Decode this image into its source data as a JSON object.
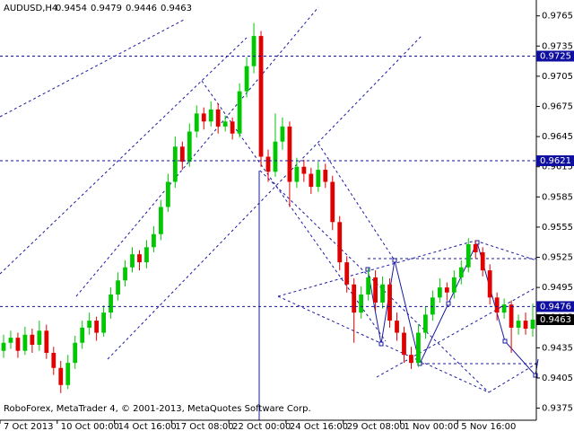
{
  "chart_data": {
    "type": "candlestick",
    "symbol": "AUDUSD,H4",
    "header_values": [
      0.9454,
      0.9479,
      0.9446,
      0.9463
    ],
    "footer": "RoboForex, MetaTrader 4, © 2001-2013, MetaQuotes Software Corp.",
    "up_color": "#00c800",
    "down_color": "#e00000",
    "level_color": "#1010a0",
    "last_color": "#000000",
    "ylim": [
      0.9363,
      0.9779
    ],
    "yticks": [
      0.9765,
      0.9735,
      0.9705,
      0.9675,
      0.9645,
      0.9615,
      0.9585,
      0.9555,
      0.9525,
      0.9495,
      0.9465,
      0.9435,
      0.9405,
      0.9375
    ],
    "xlim": [
      0,
      75
    ],
    "xticks": [
      {
        "value": 0,
        "label": "7 Oct 2013"
      },
      {
        "value": 8,
        "label": "10 Oct 00:00"
      },
      {
        "value": 16,
        "label": "14 Oct 16:00"
      },
      {
        "value": 24,
        "label": "17 Oct 08:00"
      },
      {
        "value": 32,
        "label": "22 Oct 00:00"
      },
      {
        "value": 40,
        "label": "24 Oct 16:00"
      },
      {
        "value": 48,
        "label": "29 Oct 08:00"
      },
      {
        "value": 56,
        "label": "1 Nov 00:00"
      },
      {
        "value": 64,
        "label": "5 Nov 16:00"
      }
    ],
    "levels": [
      0.9725,
      0.9621,
      0.9476
    ],
    "last": 0.9463,
    "ohlc": [
      [
        0.9432,
        0.9448,
        0.9425,
        0.944
      ],
      [
        0.944,
        0.9452,
        0.9434,
        0.9445
      ],
      [
        0.9445,
        0.945,
        0.9425,
        0.9432
      ],
      [
        0.9432,
        0.9456,
        0.9428,
        0.9448
      ],
      [
        0.9448,
        0.9454,
        0.943,
        0.9438
      ],
      [
        0.9438,
        0.9462,
        0.9432,
        0.9452
      ],
      [
        0.9452,
        0.9458,
        0.9424,
        0.943
      ],
      [
        0.943,
        0.9436,
        0.9408,
        0.9415
      ],
      [
        0.9415,
        0.9422,
        0.939,
        0.9398
      ],
      [
        0.9398,
        0.9428,
        0.9394,
        0.942
      ],
      [
        0.942,
        0.9447,
        0.9414,
        0.944
      ],
      [
        0.944,
        0.9462,
        0.9434,
        0.9455
      ],
      [
        0.9455,
        0.947,
        0.9448,
        0.9462
      ],
      [
        0.9462,
        0.9466,
        0.9442,
        0.945
      ],
      [
        0.945,
        0.9477,
        0.9446,
        0.947
      ],
      [
        0.947,
        0.9495,
        0.9464,
        0.9488
      ],
      [
        0.9488,
        0.951,
        0.9482,
        0.9502
      ],
      [
        0.9502,
        0.9522,
        0.9496,
        0.9515
      ],
      [
        0.9515,
        0.9535,
        0.951,
        0.9528
      ],
      [
        0.9528,
        0.9532,
        0.9512,
        0.952
      ],
      [
        0.952,
        0.9542,
        0.9514,
        0.9535
      ],
      [
        0.9535,
        0.9556,
        0.953,
        0.9548
      ],
      [
        0.9548,
        0.9582,
        0.9542,
        0.9575
      ],
      [
        0.9575,
        0.9608,
        0.957,
        0.96
      ],
      [
        0.96,
        0.9645,
        0.9594,
        0.9635
      ],
      [
        0.9635,
        0.964,
        0.9612,
        0.962
      ],
      [
        0.962,
        0.9658,
        0.9615,
        0.965
      ],
      [
        0.965,
        0.9676,
        0.9644,
        0.9668
      ],
      [
        0.9668,
        0.9674,
        0.9652,
        0.966
      ],
      [
        0.966,
        0.968,
        0.9655,
        0.9672
      ],
      [
        0.9672,
        0.9678,
        0.9648,
        0.9655
      ],
      [
        0.9655,
        0.9666,
        0.965,
        0.966
      ],
      [
        0.966,
        0.9664,
        0.9642,
        0.9648
      ],
      [
        0.9648,
        0.9698,
        0.9644,
        0.969
      ],
      [
        0.969,
        0.9724,
        0.9684,
        0.9715
      ],
      [
        0.9715,
        0.9758,
        0.9708,
        0.9745
      ],
      [
        0.9745,
        0.975,
        0.9615,
        0.9625
      ],
      [
        0.9625,
        0.9632,
        0.96,
        0.961
      ],
      [
        0.961,
        0.9668,
        0.9605,
        0.964
      ],
      [
        0.964,
        0.9664,
        0.9632,
        0.9655
      ],
      [
        0.9655,
        0.966,
        0.9575,
        0.96
      ],
      [
        0.96,
        0.9624,
        0.9594,
        0.9615
      ],
      [
        0.9615,
        0.9622,
        0.96,
        0.9608
      ],
      [
        0.9608,
        0.9614,
        0.9588,
        0.9595
      ],
      [
        0.9595,
        0.962,
        0.959,
        0.9612
      ],
      [
        0.9612,
        0.9618,
        0.9594,
        0.96
      ],
      [
        0.96,
        0.9606,
        0.9552,
        0.956
      ],
      [
        0.956,
        0.9566,
        0.9512,
        0.952
      ],
      [
        0.952,
        0.9526,
        0.949,
        0.9498
      ],
      [
        0.9498,
        0.9504,
        0.944,
        0.947
      ],
      [
        0.947,
        0.9496,
        0.9464,
        0.9488
      ],
      [
        0.9488,
        0.9514,
        0.9482,
        0.9505
      ],
      [
        0.9505,
        0.9512,
        0.9472,
        0.948
      ],
      [
        0.948,
        0.9506,
        0.9474,
        0.9498
      ],
      [
        0.9498,
        0.9504,
        0.9455,
        0.9462
      ],
      [
        0.9462,
        0.947,
        0.9442,
        0.945
      ],
      [
        0.945,
        0.9456,
        0.942,
        0.9428
      ],
      [
        0.9428,
        0.9436,
        0.9414,
        0.942
      ],
      [
        0.942,
        0.9458,
        0.9416,
        0.945
      ],
      [
        0.945,
        0.9476,
        0.9444,
        0.9468
      ],
      [
        0.9468,
        0.9492,
        0.9462,
        0.9485
      ],
      [
        0.9485,
        0.9504,
        0.948,
        0.9495
      ],
      [
        0.9495,
        0.95,
        0.9482,
        0.949
      ],
      [
        0.949,
        0.9512,
        0.9484,
        0.9505
      ],
      [
        0.9505,
        0.9522,
        0.9498,
        0.9515
      ],
      [
        0.9515,
        0.9544,
        0.951,
        0.9538
      ],
      [
        0.9538,
        0.9542,
        0.9524,
        0.953
      ],
      [
        0.953,
        0.9535,
        0.9506,
        0.9512
      ],
      [
        0.9512,
        0.9518,
        0.9478,
        0.9485
      ],
      [
        0.9485,
        0.949,
        0.9462,
        0.947
      ],
      [
        0.947,
        0.9484,
        0.9464,
        0.9478
      ],
      [
        0.9478,
        0.9482,
        0.943,
        0.9455
      ],
      [
        0.9455,
        0.9468,
        0.9448,
        0.9462
      ],
      [
        0.9462,
        0.947,
        0.9448,
        0.9454
      ],
      [
        0.9454,
        0.9479,
        0.9446,
        0.9463
      ]
    ]
  }
}
